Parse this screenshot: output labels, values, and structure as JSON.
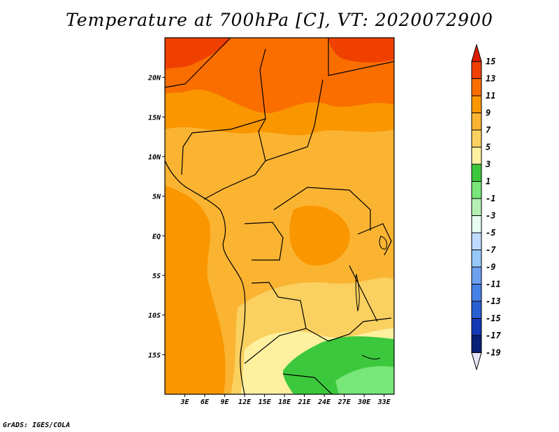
{
  "title": "Temperature at 700hPa [C], VT: 2020072900",
  "credit": "GrADS: IGES/COLA",
  "chart_data": {
    "type": "map",
    "variable": "Temperature at 700hPa",
    "units": "C",
    "valid_time": "2020072900",
    "lon_range": [
      0,
      34.5
    ],
    "lat_range": [
      -20,
      25
    ],
    "x_ticks": [
      "3E",
      "6E",
      "9E",
      "12E",
      "15E",
      "18E",
      "21E",
      "24E",
      "27E",
      "30E",
      "33E"
    ],
    "x_tick_values": [
      3,
      6,
      9,
      12,
      15,
      18,
      21,
      24,
      27,
      30,
      33
    ],
    "y_ticks": [
      "20N",
      "15N",
      "10N",
      "5N",
      "EQ",
      "5S",
      "10S",
      "15S"
    ],
    "y_tick_values": [
      20,
      15,
      10,
      5,
      0,
      -5,
      -10,
      -15
    ],
    "colorbar": {
      "labels": [
        "15",
        "13",
        "11",
        "9",
        "7",
        "5",
        "3",
        "1",
        "-1",
        "-3",
        "-5",
        "-7",
        "-9",
        "-11",
        "-13",
        "-15",
        "-17",
        "-19"
      ],
      "colors": [
        "#dc1e00",
        "#f04000",
        "#fa6e00",
        "#fa9600",
        "#fab432",
        "#fad060",
        "#fff0a0",
        "#3cc83c",
        "#78e678",
        "#b4f0b4",
        "#e6fff0",
        "#bedcff",
        "#96c8fa",
        "#6ea0f0",
        "#4682e6",
        "#2860d2",
        "#1438b4",
        "#082078",
        "#0a0a50"
      ]
    }
  }
}
